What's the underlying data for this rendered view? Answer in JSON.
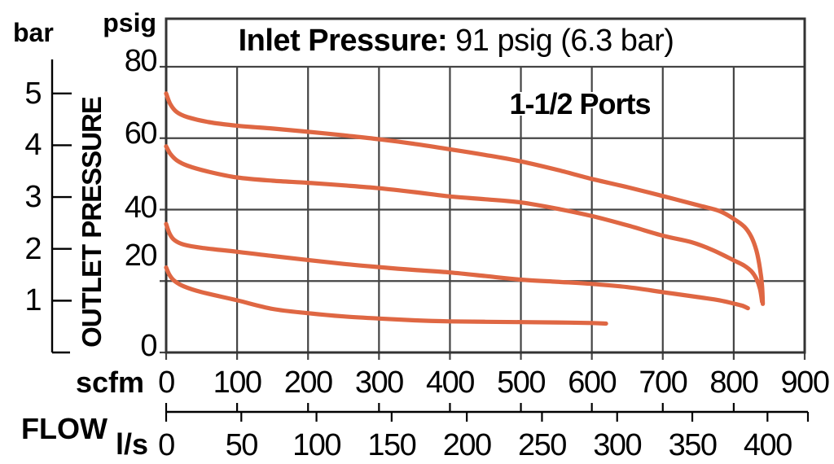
{
  "chart_data": {
    "type": "line",
    "title_bold": "Inlet Pressure:",
    "title_rest": "91 psig (6.3 bar)",
    "annotation": "1-1/2 Ports",
    "y_axis": {
      "axis_label": "OUTLET PRESSURE",
      "primary_unit": "psig",
      "primary_ticks": [
        0,
        20,
        40,
        60,
        80
      ],
      "secondary_unit": "bar",
      "secondary_ticks": [
        1,
        2,
        3,
        4,
        5
      ],
      "range_psig": [
        0,
        80
      ]
    },
    "x_axis": {
      "axis_label": "FLOW",
      "primary_unit": "scfm",
      "primary_ticks": [
        0,
        100,
        200,
        300,
        400,
        500,
        600,
        700,
        800,
        900
      ],
      "secondary_unit": "l/s",
      "secondary_ticks": [
        0,
        50,
        100,
        150,
        200,
        250,
        300,
        350,
        400
      ],
      "range_scfm": [
        0,
        900
      ]
    },
    "grid": true,
    "series": [
      {
        "name": "setting-72.5-psig",
        "points_scfm_psig": [
          [
            0,
            72.5
          ],
          [
            6,
            69.5
          ],
          [
            15,
            67.3
          ],
          [
            30,
            65.9
          ],
          [
            60,
            64.5
          ],
          [
            100,
            63.5
          ],
          [
            150,
            62.7
          ],
          [
            200,
            61.8
          ],
          [
            250,
            60.8
          ],
          [
            300,
            59.7
          ],
          [
            350,
            58.4
          ],
          [
            400,
            56.9
          ],
          [
            450,
            55.3
          ],
          [
            500,
            53.5
          ],
          [
            550,
            51.2
          ],
          [
            600,
            48.6
          ],
          [
            650,
            46.3
          ],
          [
            700,
            43.8
          ],
          [
            750,
            41.2
          ],
          [
            780,
            39.6
          ],
          [
            800,
            37.4
          ],
          [
            815,
            35.2
          ],
          [
            825,
            32.3
          ],
          [
            832,
            28.5
          ],
          [
            837,
            23.5
          ],
          [
            840,
            18.5
          ],
          [
            841,
            13.6
          ]
        ]
      },
      {
        "name": "setting-58-psig",
        "points_scfm_psig": [
          [
            0,
            57.7
          ],
          [
            6,
            55.6
          ],
          [
            15,
            53.8
          ],
          [
            30,
            52.3
          ],
          [
            60,
            50.6
          ],
          [
            100,
            49
          ],
          [
            150,
            48.1
          ],
          [
            200,
            47.5
          ],
          [
            250,
            46.8
          ],
          [
            300,
            46
          ],
          [
            350,
            44.9
          ],
          [
            400,
            43.7
          ],
          [
            450,
            42.9
          ],
          [
            500,
            42
          ],
          [
            550,
            40.3
          ],
          [
            600,
            38.2
          ],
          [
            650,
            35.6
          ],
          [
            700,
            32.7
          ],
          [
            740,
            30.9
          ],
          [
            770,
            28.7
          ],
          [
            800,
            25.8
          ],
          [
            815,
            24.3
          ],
          [
            825,
            22.7
          ],
          [
            832,
            20.6
          ],
          [
            837,
            17.8
          ],
          [
            840,
            14.2
          ]
        ]
      },
      {
        "name": "setting-36-psig",
        "points_scfm_psig": [
          [
            0,
            36
          ],
          [
            5,
            33.2
          ],
          [
            12,
            31.4
          ],
          [
            25,
            30.2
          ],
          [
            50,
            29.3
          ],
          [
            100,
            28.2
          ],
          [
            150,
            27
          ],
          [
            200,
            25.9
          ],
          [
            250,
            24.8
          ],
          [
            300,
            23.9
          ],
          [
            350,
            23.1
          ],
          [
            400,
            22.4
          ],
          [
            450,
            21.4
          ],
          [
            500,
            20.4
          ],
          [
            550,
            19.8
          ],
          [
            600,
            19.2
          ],
          [
            650,
            18.3
          ],
          [
            700,
            16.9
          ],
          [
            750,
            15.5
          ],
          [
            780,
            14.6
          ],
          [
            800,
            13.7
          ],
          [
            812,
            13.1
          ],
          [
            820,
            12.4
          ]
        ]
      },
      {
        "name": "setting-24-psig",
        "points_scfm_psig": [
          [
            0,
            23.8
          ],
          [
            5,
            21.6
          ],
          [
            12,
            20
          ],
          [
            25,
            18.5
          ],
          [
            50,
            16.9
          ],
          [
            100,
            14.6
          ],
          [
            150,
            12.2
          ],
          [
            200,
            11
          ],
          [
            250,
            10.1
          ],
          [
            300,
            9.5
          ],
          [
            350,
            9
          ],
          [
            400,
            8.7
          ],
          [
            450,
            8.6
          ],
          [
            500,
            8.5
          ],
          [
            550,
            8.4
          ],
          [
            600,
            8.25
          ],
          [
            620,
            8.1
          ]
        ]
      }
    ],
    "colors": {
      "curve": "#DF6743",
      "grid": "#444444",
      "frame": "#333333",
      "text": "#000000",
      "background": "#ffffff"
    }
  }
}
